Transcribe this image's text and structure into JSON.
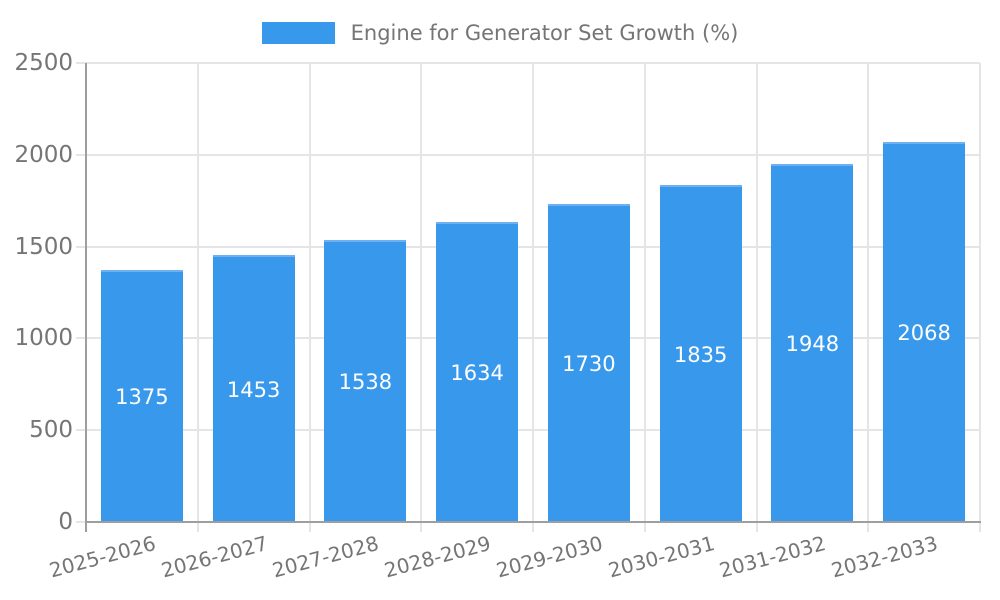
{
  "legend": {
    "label": "Engine for Generator Set Growth (%)"
  },
  "chart_data": {
    "type": "bar",
    "title": "Engine for Generator Set Growth (%)",
    "series_name": "Engine for Generator Set Growth (%)",
    "categories": [
      "2025-2026",
      "2026-2027",
      "2027-2028",
      "2028-2029",
      "2029-2030",
      "2030-2031",
      "2031-2032",
      "2032-2033"
    ],
    "values": [
      1375,
      1453,
      1538,
      1634,
      1730,
      1835,
      1948,
      2068
    ],
    "xlabel": "",
    "ylabel": "",
    "ylim": [
      0,
      2500
    ],
    "yticks": [
      0,
      500,
      1000,
      1500,
      2000,
      2500
    ],
    "grid": true,
    "legend_position": "top",
    "x_label_rotation_deg": -15,
    "colors": {
      "bar_fill": "#3899ec",
      "bar_border": "#6db1f2",
      "value_label": "#ffffff",
      "axis_text": "#757575",
      "grid_line": "#e5e5e5",
      "axis_line": "#9e9e9e",
      "background": "#ffffff"
    }
  }
}
